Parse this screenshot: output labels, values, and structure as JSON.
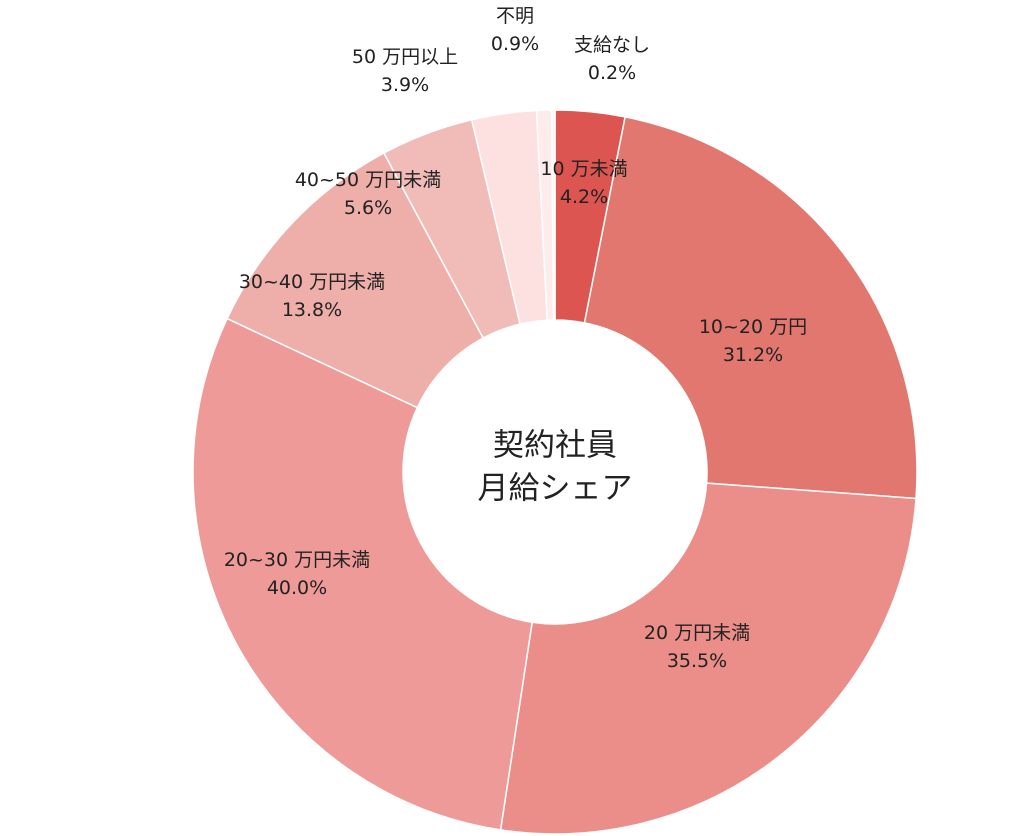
{
  "chart_data": {
    "type": "pie",
    "title": "契約社員\n月給シェア",
    "center_lines": [
      "契約社員",
      "月給シェア"
    ],
    "categories": [
      "10 万未満",
      "10~20 万円",
      "20 万円未満",
      "20~30 万円未満",
      "30~40 万円未満",
      "40~50 万円未満",
      "50 万円以上",
      "不明",
      "支給なし"
    ],
    "values": [
      4.2,
      31.2,
      35.5,
      40.0,
      13.8,
      5.6,
      3.9,
      0.9,
      0.2
    ],
    "value_labels": [
      "4.2%",
      "31.2%",
      "35.5%",
      "40.0%",
      "13.8%",
      "5.6%",
      "3.9%",
      "0.9%",
      "0.2%"
    ],
    "colors": [
      "#dc5550",
      "#e2776f",
      "#eb8d88",
      "#ee9a98",
      "#eeaeaa",
      "#f1bbb8",
      "#fde1e0",
      "#fdeceb",
      "#fef5f4"
    ],
    "donut": true,
    "legend": "none"
  }
}
